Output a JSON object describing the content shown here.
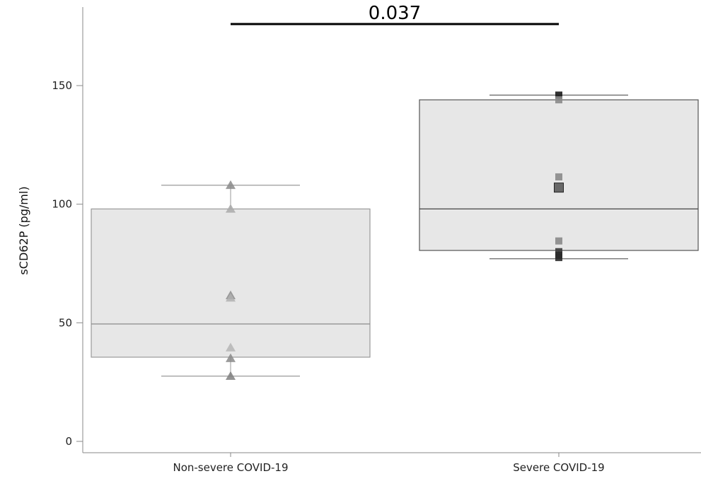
{
  "chart_data": {
    "type": "box",
    "ylabel": "sCD62P (pg/ml)",
    "ylim": [
      0,
      175
    ],
    "yticks": [
      0,
      50,
      100,
      150
    ],
    "categories": [
      "Non-severe COVID-19",
      "Severe COVID-19"
    ],
    "boxes": [
      {
        "name": "Non-severe COVID-19",
        "whisker_low": 27.5,
        "q1": 35.5,
        "median": 49.5,
        "q3": 98,
        "whisker_high": 108,
        "marker": "triangle",
        "points": [
          108,
          98,
          61.5,
          60.5,
          39.5,
          35,
          27.5
        ],
        "point_colors": [
          "#8a8a8a",
          "#a9a9a9",
          "#8a8a8a",
          "#b0b0b0",
          "#b5b5b5",
          "#8a8a8a",
          "#7f7f7f"
        ]
      },
      {
        "name": "Severe COVID-19",
        "whisker_low": 77,
        "q1": 80.5,
        "median": 98,
        "q3": 144,
        "whisker_high": 146,
        "marker": "square",
        "points": [
          146,
          144,
          111.5,
          107,
          84.5,
          80,
          78.5,
          77.5
        ],
        "point_colors": [
          "#1a1a1a",
          "#8a8a8a",
          "#8a8a8a",
          "#5a5a5a",
          "#8a8a8a",
          "#3a3a3a",
          "#2a2a2a",
          "#2a2a2a"
        ]
      }
    ],
    "annotations": [
      {
        "text": "0.037",
        "type": "significance-bracket",
        "between": [
          "Non-severe COVID-19",
          "Severe COVID-19"
        ]
      }
    ],
    "colors": {
      "box_fill": "#e4e4e4",
      "box_stroke": "#555555",
      "axis": "#888888"
    }
  }
}
